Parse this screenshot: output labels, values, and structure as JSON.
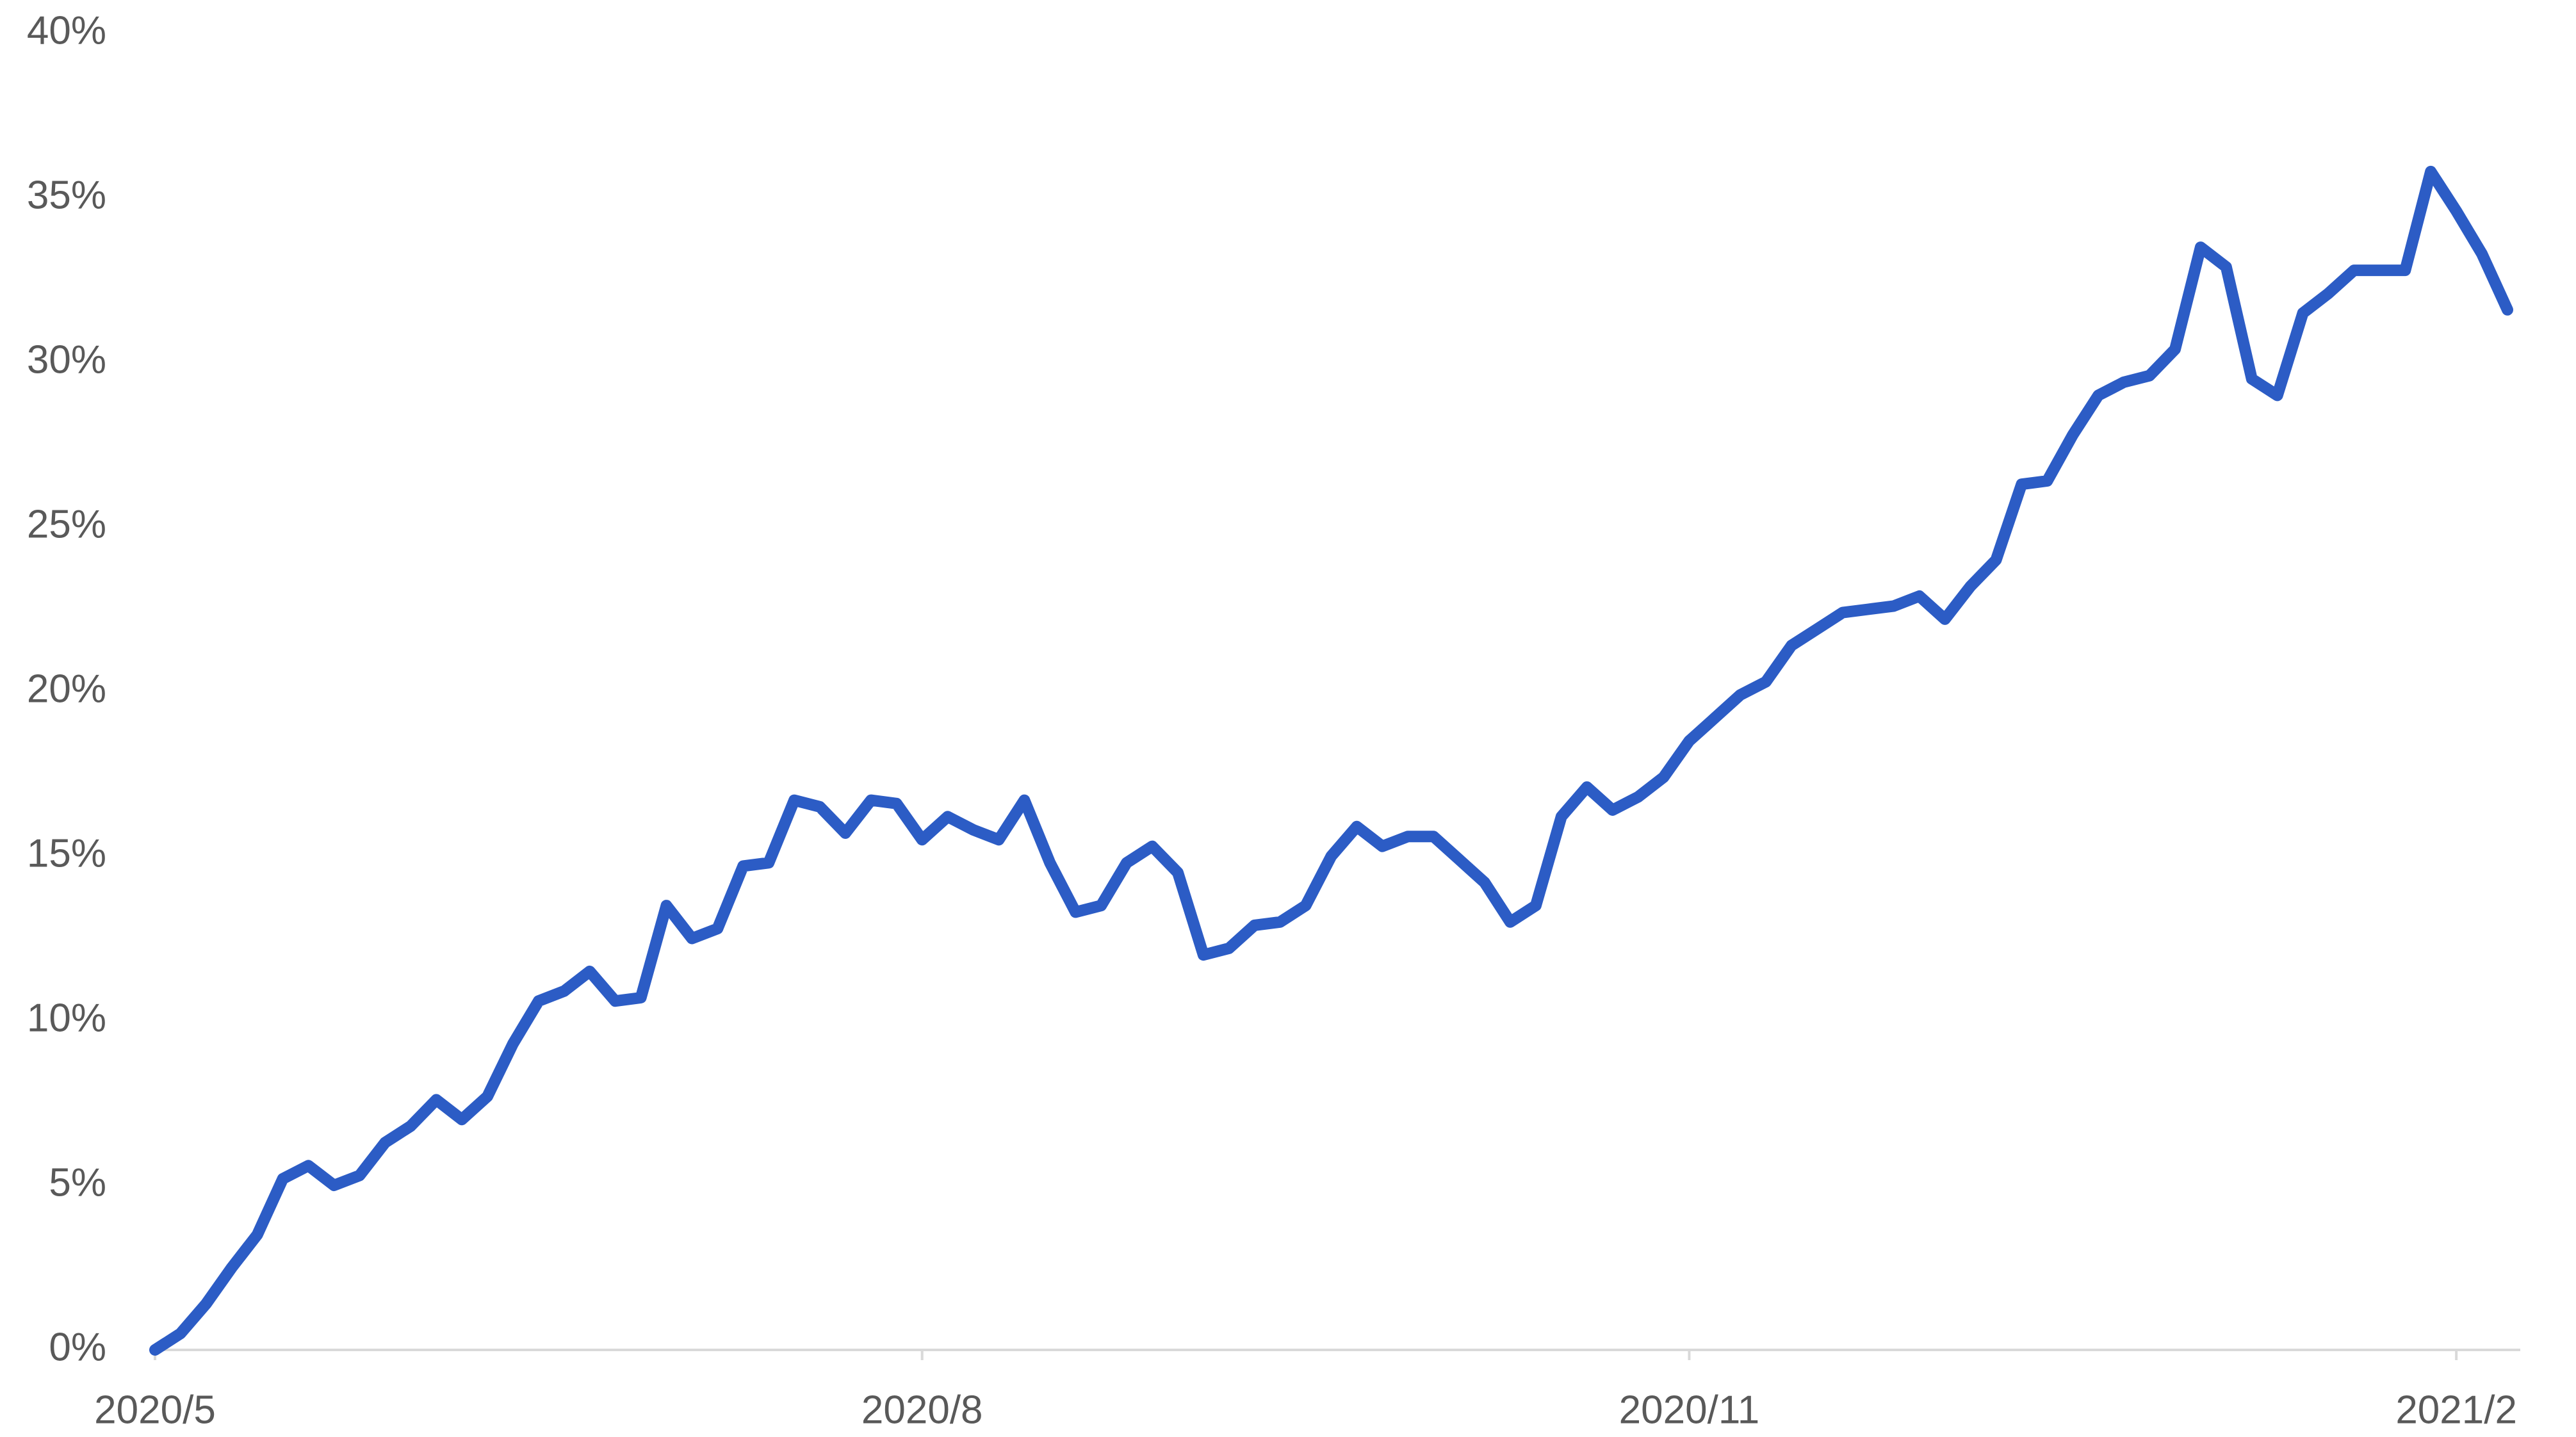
{
  "chart_data": {
    "type": "line",
    "categories": [
      "2020/5",
      null,
      null,
      null,
      null,
      null,
      null,
      null,
      null,
      null,
      null,
      null,
      null,
      null,
      null,
      null,
      null,
      null,
      null,
      null,
      null,
      null,
      null,
      null,
      null,
      null,
      null,
      null,
      null,
      null,
      "2020/8",
      null,
      null,
      null,
      null,
      null,
      null,
      null,
      null,
      null,
      null,
      null,
      null,
      null,
      null,
      null,
      null,
      null,
      null,
      null,
      null,
      null,
      null,
      null,
      null,
      null,
      null,
      null,
      null,
      null,
      "2020/11",
      null,
      null,
      null,
      null,
      null,
      null,
      null,
      null,
      null,
      null,
      null,
      null,
      null,
      null,
      null,
      null,
      null,
      null,
      null,
      null,
      null,
      null,
      null,
      null,
      null,
      null,
      null,
      null,
      null,
      "2021/2",
      null,
      null
    ],
    "values": [
      0,
      0.5,
      1.4,
      2.5,
      3.5,
      5.2,
      5.6,
      5.0,
      5.3,
      6.3,
      6.8,
      7.6,
      7.0,
      7.7,
      9.3,
      10.6,
      10.9,
      11.5,
      10.6,
      10.7,
      13.5,
      12.5,
      12.8,
      14.7,
      14.8,
      16.7,
      16.5,
      15.7,
      16.7,
      16.6,
      15.5,
      16.2,
      15.8,
      15.5,
      16.7,
      14.8,
      13.3,
      13.5,
      14.8,
      15.3,
      14.5,
      12.0,
      12.2,
      12.9,
      13.0,
      13.5,
      15.0,
      15.9,
      15.3,
      15.6,
      15.6,
      14.9,
      14.2,
      13.0,
      13.5,
      16.2,
      17.1,
      16.4,
      16.8,
      17.4,
      18.5,
      19.2,
      19.9,
      20.3,
      21.4,
      21.9,
      22.4,
      22.5,
      22.6,
      22.9,
      22.2,
      23.2,
      24.0,
      26.3,
      26.4,
      27.8,
      29.0,
      29.4,
      29.6,
      30.4,
      33.5,
      32.9,
      29.5,
      29.0,
      31.5,
      32.1,
      32.8,
      32.8,
      32.8,
      35.8,
      34.6,
      33.3,
      31.6
    ],
    "color": "#2c5cc5",
    "ylim": [
      0,
      40
    ],
    "yticks": [
      {
        "value": 0,
        "label": "0%"
      },
      {
        "value": 5,
        "label": "5%"
      },
      {
        "value": 10,
        "label": "10%"
      },
      {
        "value": 15,
        "label": "15%"
      },
      {
        "value": 20,
        "label": "20%"
      },
      {
        "value": 25,
        "label": "25%"
      },
      {
        "value": 30,
        "label": "30%"
      },
      {
        "value": 35,
        "label": "35%"
      },
      {
        "value": 40,
        "label": "40%"
      }
    ],
    "grid": false
  }
}
